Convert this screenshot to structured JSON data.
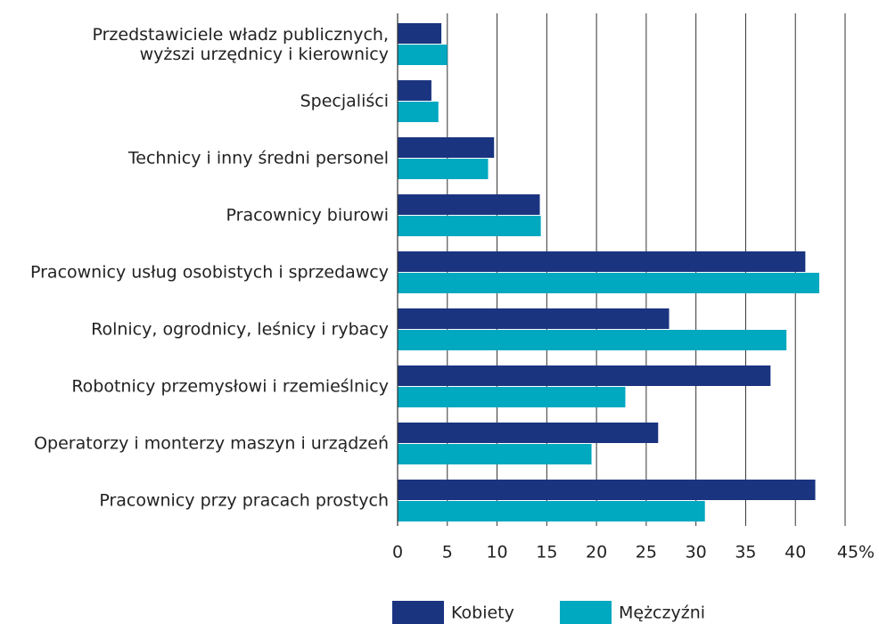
{
  "chart_data": {
    "type": "bar",
    "orientation": "horizontal",
    "categories": [
      "Przedstawiciele władz publicznych,\nwyższi urzędnicy i kierownicy",
      "Specjaliści",
      "Technicy i inny średni personel",
      "Pracownicy biurowi",
      "Pracownicy usług osobistych i sprzedawcy",
      "Rolnicy, ogrodnicy, leśnicy i rybacy",
      "Robotnicy przemysłowi i rzemieślnicy",
      "Operatorzy i monterzy maszyn i urządzeń",
      "Pracownicy przy pracach prostych"
    ],
    "series": [
      {
        "name": "Kobiety",
        "color": "#1a3480",
        "values": [
          4.4,
          3.4,
          9.7,
          14.3,
          41.0,
          27.3,
          37.5,
          26.2,
          42.0
        ]
      },
      {
        "name": "Mężczyźni",
        "color": "#00a8c0",
        "values": [
          5.0,
          4.1,
          9.1,
          14.4,
          42.4,
          39.1,
          22.9,
          19.5,
          30.9
        ]
      }
    ],
    "xlim": [
      0,
      45
    ],
    "xticks": [
      0,
      5,
      10,
      15,
      20,
      25,
      30,
      35,
      40,
      {
        "value": 45,
        "label": "45%"
      }
    ],
    "grid": true,
    "legend": "bottom"
  }
}
